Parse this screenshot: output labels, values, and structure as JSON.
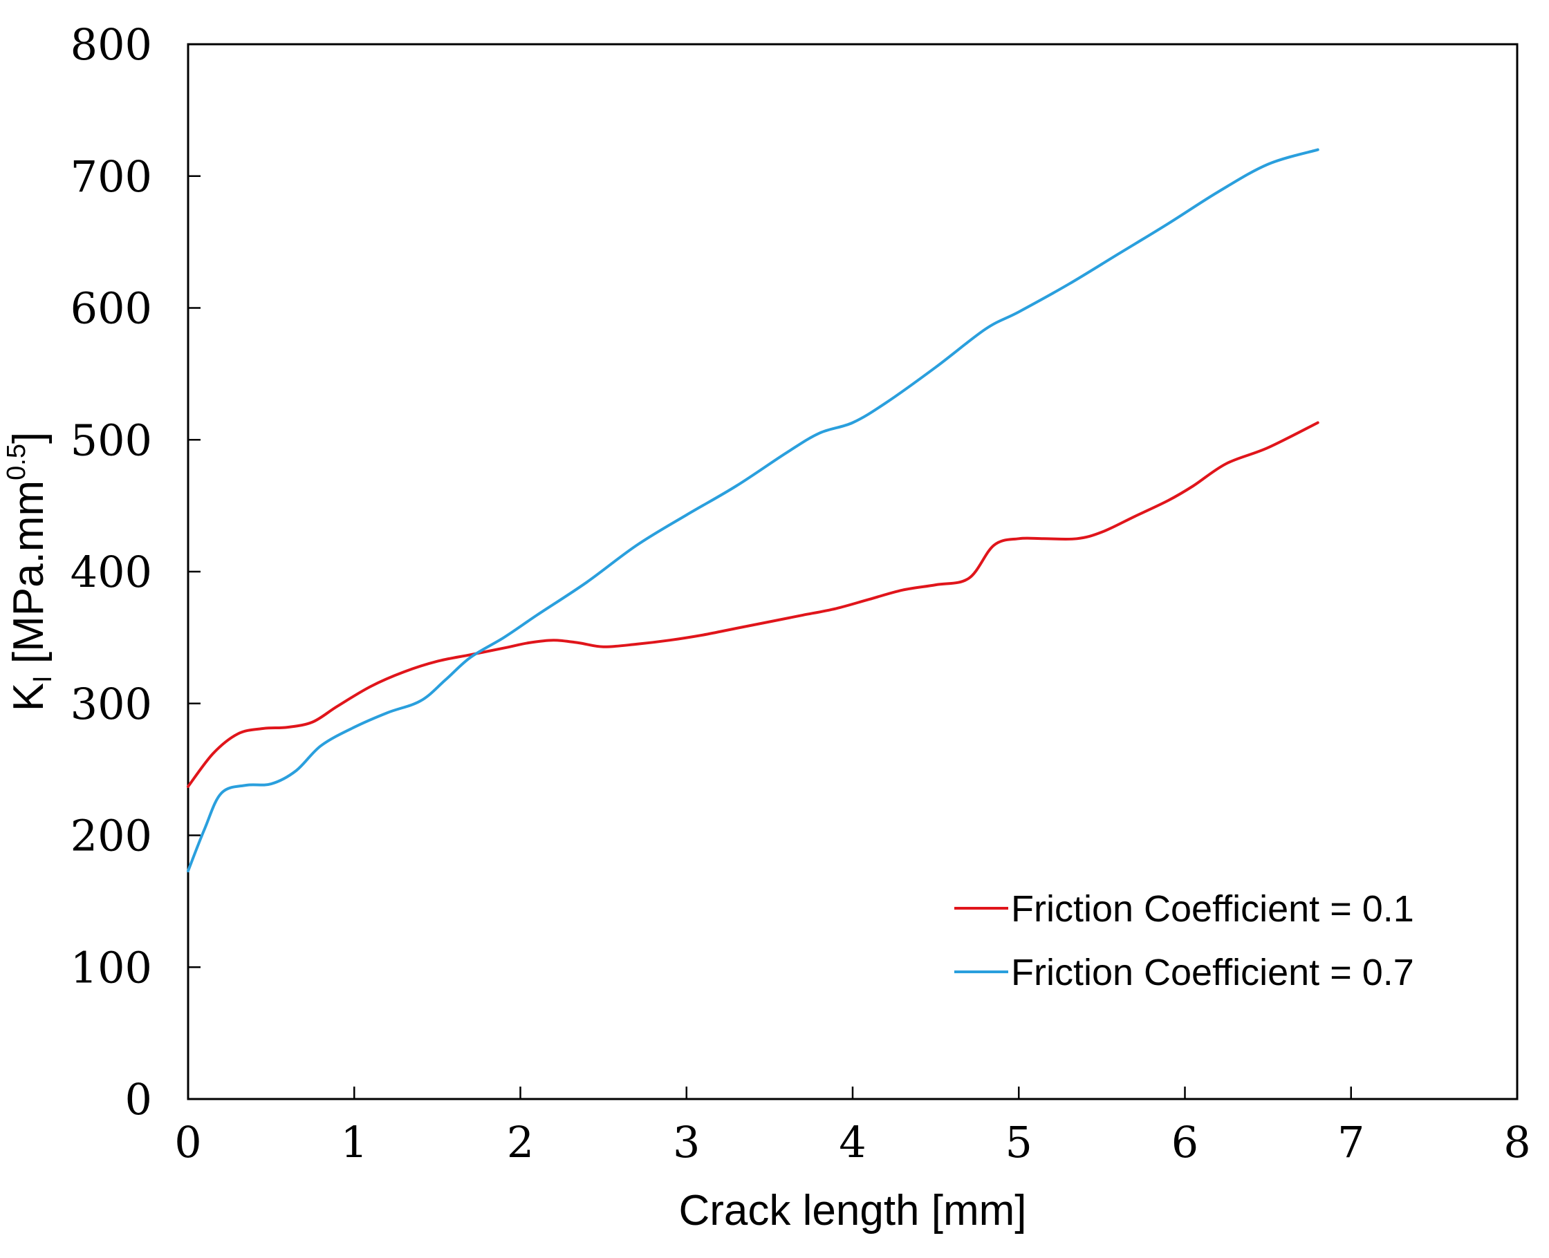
{
  "chart_data": {
    "type": "line",
    "title": "",
    "xlabel": "Crack length [mm]",
    "ylabel": {
      "base": "K",
      "sub": "I",
      "unit_prefix": " [MPa.mm",
      "sup": "0.5",
      "unit_suffix": "]"
    },
    "xlim": [
      0,
      8
    ],
    "ylim": [
      0,
      800
    ],
    "x_ticks": [
      0,
      1,
      2,
      3,
      4,
      5,
      6,
      7,
      8
    ],
    "y_ticks": [
      0,
      100,
      200,
      300,
      400,
      500,
      600,
      700,
      800
    ],
    "grid": false,
    "legend_position": "bottom-right",
    "series": [
      {
        "name": "Friction Coefficient = 0.1",
        "color": "#e0151b",
        "x": [
          0,
          0.15,
          0.3,
          0.45,
          0.6,
          0.75,
          0.9,
          1.1,
          1.3,
          1.5,
          1.7,
          1.9,
          2.05,
          2.2,
          2.35,
          2.5,
          2.7,
          2.9,
          3.1,
          3.3,
          3.5,
          3.7,
          3.9,
          4.1,
          4.3,
          4.5,
          4.7,
          4.85,
          5.0,
          5.15,
          5.35,
          5.5,
          5.7,
          5.9,
          6.05,
          6.25,
          6.5,
          6.8
        ],
        "y": [
          237,
          262,
          277,
          281,
          282,
          286,
          298,
          313,
          324,
          332,
          337,
          342,
          346,
          348,
          346,
          343,
          345,
          348,
          352,
          357,
          362,
          367,
          372,
          379,
          386,
          390,
          395,
          420,
          425,
          425,
          425,
          430,
          442,
          454,
          465,
          482,
          494,
          513
        ]
      },
      {
        "name": "Friction Coefficient = 0.7",
        "color": "#2a9fdd",
        "x": [
          0,
          0.1,
          0.2,
          0.35,
          0.5,
          0.65,
          0.8,
          1.0,
          1.2,
          1.4,
          1.55,
          1.7,
          1.9,
          2.1,
          2.4,
          2.7,
          3.0,
          3.3,
          3.6,
          3.8,
          4.0,
          4.2,
          4.5,
          4.8,
          5.0,
          5.3,
          5.6,
          5.9,
          6.2,
          6.5,
          6.8
        ],
        "y": [
          173,
          205,
          232,
          238,
          239,
          249,
          268,
          282,
          293,
          302,
          318,
          335,
          350,
          367,
          392,
          420,
          443,
          465,
          490,
          505,
          513,
          528,
          555,
          584,
          597,
          618,
          641,
          664,
          688,
          709,
          720
        ]
      }
    ]
  }
}
